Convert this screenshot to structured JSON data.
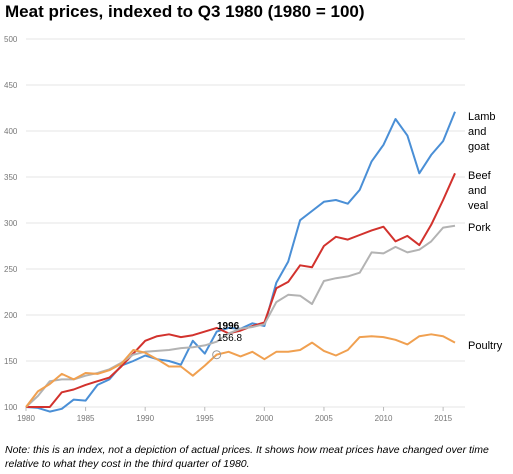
{
  "chart_data": {
    "type": "line",
    "title": "Meat prices, indexed to Q3 1980 (1980 = 100)",
    "xlabel": "",
    "ylabel": "",
    "xlim": [
      1980,
      2016.5
    ],
    "ylim": [
      100,
      500
    ],
    "xticks": [
      1980,
      1985,
      1990,
      1995,
      2000,
      2005,
      2010,
      2015
    ],
    "yticks": [
      100,
      150,
      200,
      250,
      300,
      350,
      400,
      450,
      500
    ],
    "grid": true,
    "legend": "direct labels at right end of lines",
    "series": [
      {
        "name": "Lamb and goat",
        "color": "#4a8fd6",
        "x": [
          1980,
          1981,
          1982,
          1983,
          1984,
          1985,
          1986,
          1987,
          1988,
          1989,
          1990,
          1991,
          1992,
          1993,
          1994,
          1995,
          1996,
          1997,
          1998,
          1999,
          2000,
          2001,
          2002,
          2003,
          2004,
          2005,
          2006,
          2007,
          2008,
          2009,
          2010,
          2011,
          2012,
          2013,
          2014,
          2015,
          2016
        ],
        "y": [
          100,
          99,
          95,
          98,
          108,
          107,
          124,
          130,
          145,
          150,
          156,
          152,
          150,
          146,
          172,
          158,
          182,
          186,
          185,
          191,
          188,
          235,
          258,
          303,
          313,
          323,
          325,
          321,
          336,
          367,
          385,
          413,
          395,
          354,
          374,
          389,
          421
        ]
      },
      {
        "name": "Beef and veal",
        "color": "#d2322d",
        "x": [
          1980,
          1981,
          1982,
          1983,
          1984,
          1985,
          1986,
          1987,
          1988,
          1989,
          1990,
          1991,
          1992,
          1993,
          1994,
          1995,
          1996,
          1997,
          1998,
          1999,
          2000,
          2001,
          2002,
          2003,
          2004,
          2005,
          2006,
          2007,
          2008,
          2009,
          2010,
          2011,
          2012,
          2013,
          2014,
          2015,
          2016
        ],
        "y": [
          100,
          100,
          100,
          116,
          119,
          124,
          128,
          132,
          144,
          158,
          172,
          177,
          179,
          176,
          178,
          182,
          186,
          180,
          183,
          188,
          192,
          229,
          236,
          254,
          252,
          275,
          285,
          282,
          287,
          292,
          296,
          280,
          286,
          276,
          298,
          325,
          354
        ]
      },
      {
        "name": "Pork",
        "color": "#b3b3b3",
        "x": [
          1980,
          1981,
          1982,
          1983,
          1984,
          1985,
          1986,
          1987,
          1988,
          1989,
          1990,
          1991,
          1992,
          1993,
          1994,
          1995,
          1996,
          1997,
          1998,
          1999,
          2000,
          2001,
          2002,
          2003,
          2004,
          2005,
          2006,
          2007,
          2008,
          2009,
          2010,
          2011,
          2012,
          2013,
          2014,
          2015,
          2016
        ],
        "y": [
          100,
          112,
          128,
          130,
          130,
          134,
          137,
          141,
          148,
          157,
          160,
          161,
          162,
          164,
          165,
          167,
          171,
          180,
          185,
          187,
          190,
          214,
          222,
          221,
          212,
          237,
          240,
          242,
          246,
          268,
          267,
          274,
          268,
          271,
          280,
          295,
          297
        ]
      },
      {
        "name": "Poultry",
        "color": "#f0a050",
        "x": [
          1980,
          1981,
          1982,
          1983,
          1984,
          1985,
          1986,
          1987,
          1988,
          1989,
          1990,
          1991,
          1992,
          1993,
          1994,
          1995,
          1996,
          1997,
          1998,
          1999,
          2000,
          2001,
          2002,
          2003,
          2004,
          2005,
          2006,
          2007,
          2008,
          2009,
          2010,
          2011,
          2012,
          2013,
          2014,
          2015,
          2016
        ],
        "y": [
          100,
          117,
          125,
          136,
          130,
          137,
          136,
          140,
          147,
          162,
          159,
          152,
          144,
          144,
          134,
          145,
          157,
          160,
          155,
          160,
          152,
          160,
          160,
          162,
          170,
          161,
          156,
          162,
          176,
          177,
          176,
          173,
          168,
          177,
          179,
          177,
          170
        ]
      }
    ],
    "annotation": {
      "year": "1996",
      "value": "156.8",
      "series": "Poultry",
      "x": 1996,
      "y": 156.8
    }
  },
  "labels": {
    "lamb": [
      "Lamb",
      "and",
      "goat"
    ],
    "beef": [
      "Beef",
      "and",
      "veal"
    ],
    "pork": [
      "Pork"
    ],
    "poultry": [
      "Poultry"
    ]
  },
  "note": "Note: this is an index, not a depiction of actual prices. It shows how meat prices have changed over time relative to what they cost in the third quarter of 1980."
}
